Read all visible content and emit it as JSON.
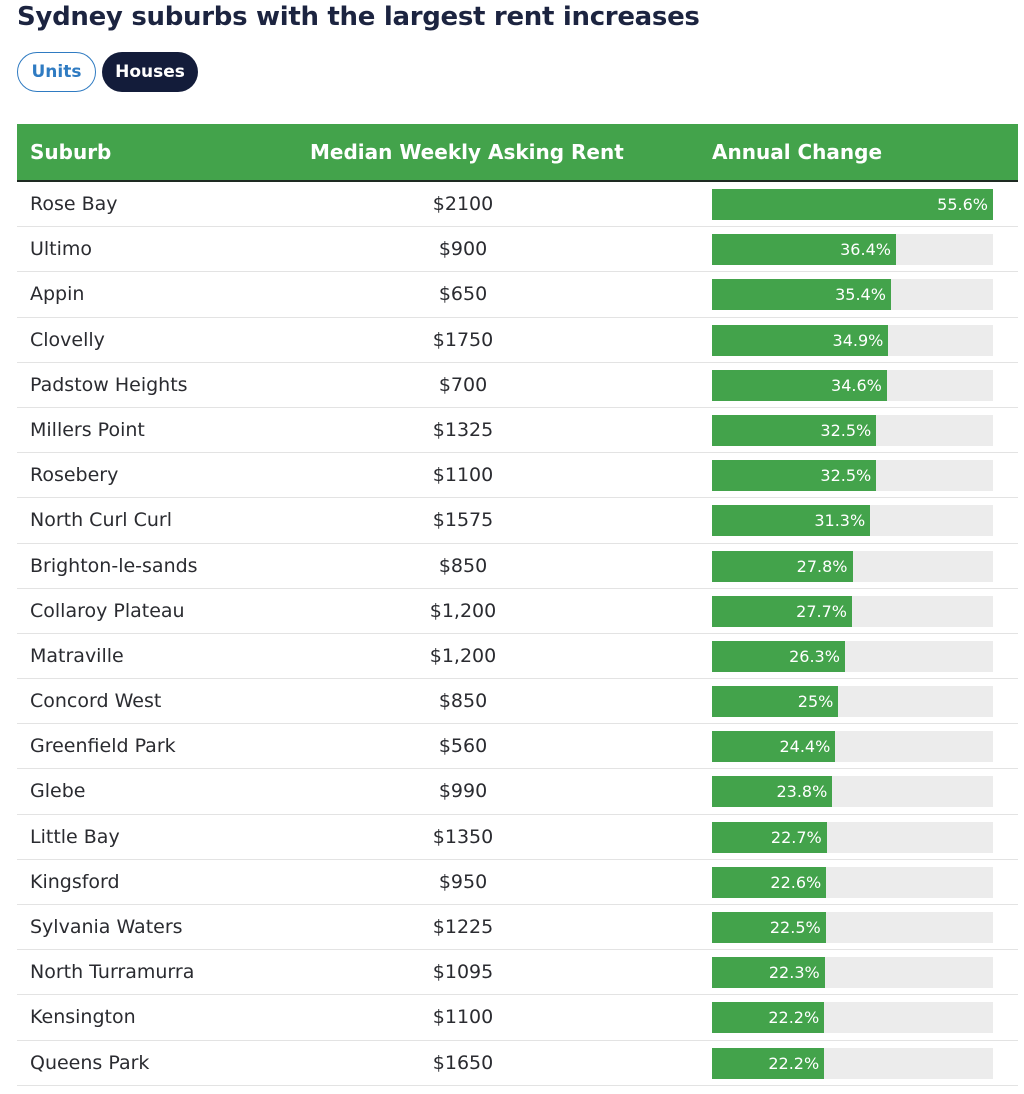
{
  "title": "Sydney suburbs with the largest rent increases",
  "toggles": [
    {
      "label": "Units",
      "active": false
    },
    {
      "label": "Houses",
      "active": true
    }
  ],
  "colors": {
    "header_bg": "#43a34b",
    "bar": "#43a34b",
    "track": "#ececec",
    "active_toggle": "#131c3a",
    "inactive_toggle": "#2f7bc2"
  },
  "chart_data": {
    "type": "table",
    "title": "Sydney suburbs with the largest rent increases",
    "columns": [
      "Suburb",
      "Median Weekly Asking Rent",
      "Annual Change"
    ],
    "bar_max": 55.6,
    "rows": [
      {
        "suburb": "Rose Bay",
        "rent": "$2100",
        "change": 55.6,
        "change_label": "55.6%"
      },
      {
        "suburb": "Ultimo",
        "rent": "$900",
        "change": 36.4,
        "change_label": "36.4%"
      },
      {
        "suburb": "Appin",
        "rent": "$650",
        "change": 35.4,
        "change_label": "35.4%"
      },
      {
        "suburb": "Clovelly",
        "rent": "$1750",
        "change": 34.9,
        "change_label": "34.9%"
      },
      {
        "suburb": "Padstow Heights",
        "rent": "$700",
        "change": 34.6,
        "change_label": "34.6%"
      },
      {
        "suburb": "Millers Point",
        "rent": "$1325",
        "change": 32.5,
        "change_label": "32.5%"
      },
      {
        "suburb": "Rosebery",
        "rent": "$1100",
        "change": 32.5,
        "change_label": "32.5%"
      },
      {
        "suburb": "North Curl Curl",
        "rent": "$1575",
        "change": 31.3,
        "change_label": "31.3%"
      },
      {
        "suburb": "Brighton-le-sands",
        "rent": "$850",
        "change": 27.8,
        "change_label": "27.8%"
      },
      {
        "suburb": "Collaroy Plateau",
        "rent": "$1,200",
        "change": 27.7,
        "change_label": "27.7%"
      },
      {
        "suburb": "Matraville",
        "rent": "$1,200",
        "change": 26.3,
        "change_label": "26.3%"
      },
      {
        "suburb": "Concord West",
        "rent": "$850",
        "change": 25,
        "change_label": "25%"
      },
      {
        "suburb": "Greenfield Park",
        "rent": "$560",
        "change": 24.4,
        "change_label": "24.4%"
      },
      {
        "suburb": "Glebe",
        "rent": "$990",
        "change": 23.8,
        "change_label": "23.8%"
      },
      {
        "suburb": "Little Bay",
        "rent": "$1350",
        "change": 22.7,
        "change_label": "22.7%"
      },
      {
        "suburb": "Kingsford",
        "rent": "$950",
        "change": 22.6,
        "change_label": "22.6%"
      },
      {
        "suburb": "Sylvania Waters",
        "rent": "$1225",
        "change": 22.5,
        "change_label": "22.5%"
      },
      {
        "suburb": "North Turramurra",
        "rent": "$1095",
        "change": 22.3,
        "change_label": "22.3%"
      },
      {
        "suburb": "Kensington",
        "rent": "$1100",
        "change": 22.2,
        "change_label": "22.2%"
      },
      {
        "suburb": "Queens Park",
        "rent": "$1650",
        "change": 22.2,
        "change_label": "22.2%"
      }
    ]
  }
}
